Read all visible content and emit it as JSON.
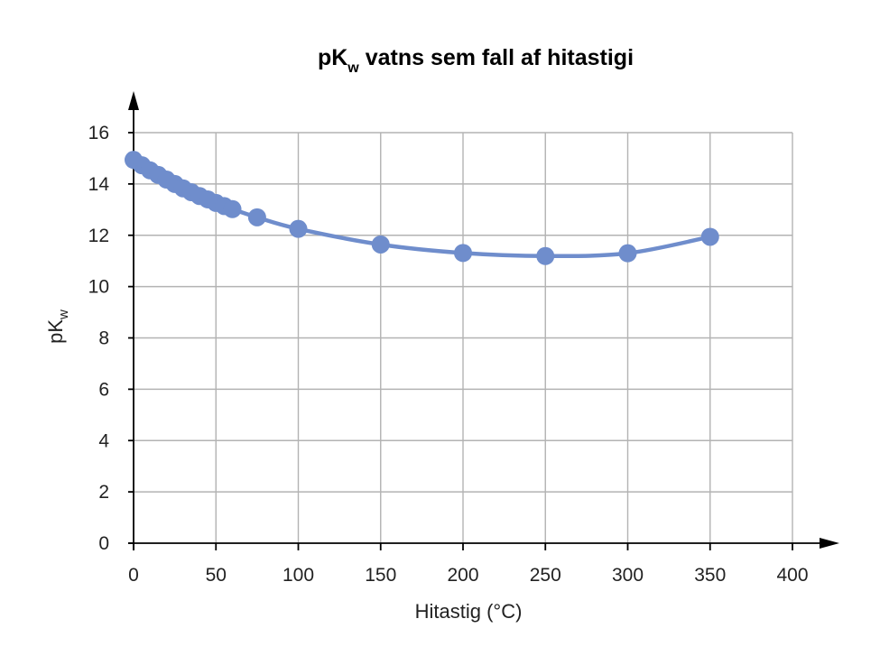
{
  "chart_data": {
    "type": "scatter",
    "title": "pK",
    "title_subscript": "w",
    "title_rest": " vatns sem fall af hitastigi",
    "xlabel": "Hitastig (°C)",
    "ylabel": "pK",
    "ylabel_subscript": "w",
    "xlim": [
      0,
      400
    ],
    "ylim": [
      0,
      16
    ],
    "xticks": [
      0,
      50,
      100,
      150,
      200,
      250,
      300,
      350,
      400
    ],
    "yticks": [
      0,
      2,
      4,
      6,
      8,
      10,
      12,
      14,
      16
    ],
    "grid": true,
    "legend": "none",
    "color": "#6f8dcc",
    "series": [
      {
        "x": [
          0,
          5,
          10,
          15,
          20,
          25,
          30,
          35,
          40,
          45,
          50,
          55,
          60,
          75,
          100,
          150,
          200,
          250,
          300,
          350
        ],
        "y": [
          14.94,
          14.73,
          14.53,
          14.35,
          14.17,
          14.0,
          13.83,
          13.68,
          13.53,
          13.4,
          13.26,
          13.14,
          13.02,
          12.7,
          12.25,
          11.64,
          11.31,
          11.19,
          11.3,
          11.94
        ]
      }
    ]
  }
}
